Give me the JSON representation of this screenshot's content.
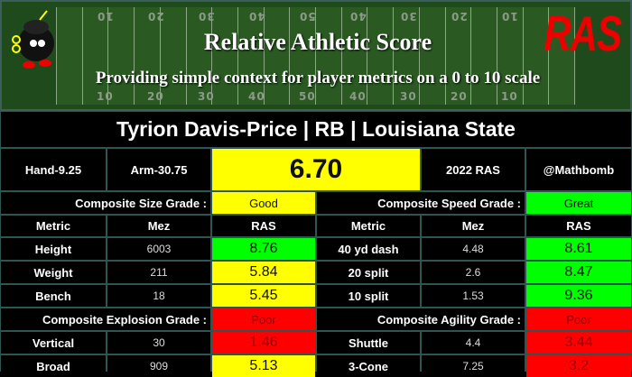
{
  "banner": {
    "title": "Relative Athletic Score",
    "subtitle": "Providing simple context for player metrics on a 0 to 10 scale",
    "logo": "RAS",
    "yard_numbers": [
      "10",
      "20",
      "30",
      "40",
      "50",
      "40",
      "30",
      "20",
      "10"
    ]
  },
  "player": {
    "title": "Tyrion Davis-Price | RB | Louisiana State"
  },
  "info": {
    "hand": "Hand-9.25",
    "arm": "Arm-30.75",
    "score": "6.70",
    "year": "2022 RAS",
    "author": "@Mathbomb"
  },
  "colors": {
    "good": "#ffff00",
    "great": "#00ff00",
    "poor": "#ff0000"
  },
  "size": {
    "label": "Composite Size Grade :",
    "grade": "Good"
  },
  "speed": {
    "label": "Composite Speed Grade :",
    "grade": "Great"
  },
  "explosion": {
    "label": "Composite Explosion Grade :",
    "grade": "Poor"
  },
  "agility": {
    "label": "Composite Agility Grade :",
    "grade": "Poor"
  },
  "headers": {
    "metric": "Metric",
    "mez": "Mez",
    "ras": "RAS"
  },
  "left_rows": [
    {
      "metric": "Height",
      "mez": "6003",
      "ras": "8.76"
    },
    {
      "metric": "Weight",
      "mez": "211",
      "ras": "5.84"
    },
    {
      "metric": "Bench",
      "mez": "18",
      "ras": "5.45"
    },
    {
      "metric": "Vertical",
      "mez": "30",
      "ras": "1.46"
    },
    {
      "metric": "Broad",
      "mez": "909",
      "ras": "5.13"
    }
  ],
  "right_rows": [
    {
      "metric": "40 yd dash",
      "mez": "4.48",
      "ras": "8.61"
    },
    {
      "metric": "20 split",
      "mez": "2.6",
      "ras": "8.47"
    },
    {
      "metric": "10 split",
      "mez": "1.53",
      "ras": "9.36"
    },
    {
      "metric": "Shuttle",
      "mez": "4.4",
      "ras": "3.44"
    },
    {
      "metric": "3-Cone",
      "mez": "7.25",
      "ras": "3.2"
    }
  ]
}
